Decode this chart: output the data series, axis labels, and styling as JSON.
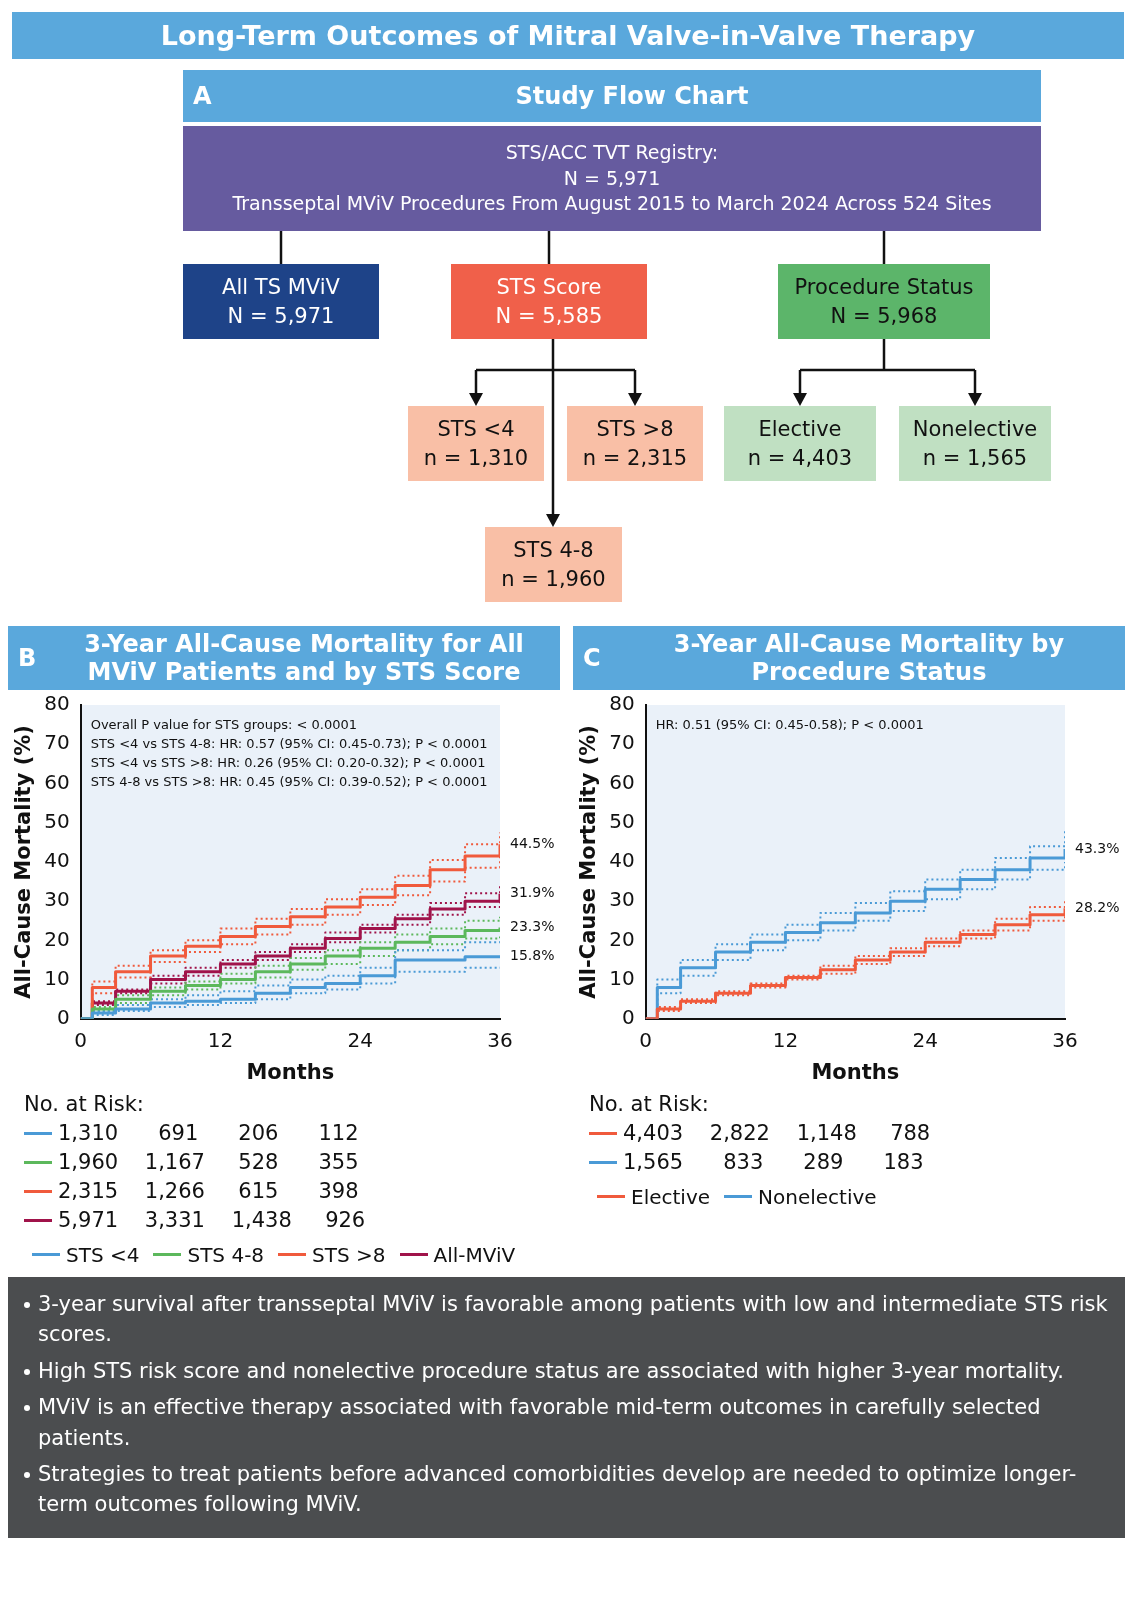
{
  "chart_data": [
    {
      "type": "other",
      "title": "Long-Term Outcomes of Mitral Valve-in-Valve Therapy",
      "subtitle": "Study Flow Chart",
      "annotations": [
        "A",
        "STS/ACC TVT Registry:\nN = 5,971\nTransseptal MViV Procedures From August 2015 to March 2024 Across 524 Sites",
        "All TS MViV\nN = 5,971",
        "STS Score\nN = 5,585",
        "Procedure Status\nN = 5,968",
        "STS <4\nn = 1,310",
        "STS >8\nn = 2,315",
        "STS 4-8\nn = 1,960",
        "Elective\nn = 4,403",
        "Nonelective\nn = 1,565"
      ]
    },
    {
      "type": "step",
      "title": "3-Year All-Cause Mortality for All MViV Patients and by STS Score",
      "xlabel": "Months",
      "ylabel": "All-Cause Mortality (%)",
      "xlim": [
        0,
        36
      ],
      "xticks": [
        0,
        12,
        24,
        36
      ],
      "ylim": [
        0,
        80
      ],
      "yticks": [
        0,
        10,
        20,
        30,
        40,
        50,
        60,
        70,
        80
      ],
      "legend": "bottom",
      "x": [
        0,
        1,
        3,
        6,
        9,
        12,
        15,
        18,
        21,
        24,
        27,
        30,
        33,
        36
      ],
      "annotations": [
        "B",
        "Overall P value for STS groups: < 0.0001\nSTS <4 vs STS 4-8: HR: 0.57 (95% CI: 0.45-0.73); P < 0.0001\nSTS <4 vs STS >8: HR: 0.26 (95% CI: 0.20-0.32); P < 0.0001\nSTS 4-8 vs STS >8: HR: 0.45 (95% CI: 0.39-0.52); P < 0.0001",
        "No. at Risk:",
        "1,310      691      206      112",
        "1,960    1,167     528      355",
        "2,315    1,266     615      398",
        "5,971    3,331    1,438     926"
      ],
      "series": [
        {
          "name": "STS <4",
          "color": "#4a9ad6",
          "values": [
            0,
            1.5,
            2.5,
            4,
            4.5,
            5,
            6.5,
            8,
            9,
            11,
            15,
            15,
            15.8,
            15.8
          ],
          "value_labels": [
            null,
            null,
            null,
            null,
            null,
            null,
            null,
            null,
            null,
            null,
            null,
            null,
            null,
            "15.8%"
          ]
        },
        {
          "name": "STS 4-8",
          "color": "#5cb85c",
          "values": [
            0,
            2.5,
            5,
            7,
            8.5,
            10,
            12,
            14,
            16,
            18,
            19.5,
            21,
            22.5,
            23.3
          ],
          "value_labels": [
            null,
            null,
            null,
            null,
            null,
            null,
            null,
            null,
            null,
            null,
            null,
            null,
            null,
            "23.3%"
          ]
        },
        {
          "name": "STS >8",
          "color": "#f05a3c",
          "values": [
            0,
            8,
            12,
            16,
            18.5,
            21,
            23.5,
            26,
            28.5,
            31,
            34,
            38,
            41.5,
            44.5
          ],
          "value_labels": [
            null,
            null,
            null,
            null,
            null,
            null,
            null,
            null,
            null,
            null,
            null,
            null,
            null,
            "44.5%"
          ]
        },
        {
          "name": "All-MViV",
          "color": "#a0134a",
          "values": [
            0,
            4,
            7,
            10,
            12,
            14,
            16,
            18,
            20.5,
            23,
            25.5,
            28,
            30,
            31.9
          ],
          "value_labels": [
            null,
            null,
            null,
            null,
            null,
            null,
            null,
            null,
            null,
            null,
            null,
            null,
            null,
            "31.9%"
          ]
        },
        {
          "color": "#4a9ad6",
          "line_style": "dotted",
          "values": [
            0,
            1,
            2,
            3,
            3.5,
            4,
            5,
            6.5,
            7.5,
            9,
            12,
            12,
            13,
            13
          ]
        },
        {
          "color": "#4a9ad6",
          "line_style": "dotted",
          "values": [
            0,
            2,
            3.5,
            5,
            6,
            7,
            8.5,
            10,
            11,
            13,
            17.5,
            17.5,
            19.5,
            20
          ]
        },
        {
          "color": "#5cb85c",
          "line_style": "dotted",
          "values": [
            0,
            2,
            4,
            6,
            7.5,
            9,
            10.5,
            12.5,
            14,
            16,
            17.5,
            19,
            20.5,
            21
          ]
        },
        {
          "color": "#5cb85c",
          "line_style": "dotted",
          "values": [
            0,
            3,
            6,
            8,
            9.5,
            11.5,
            13.5,
            15.5,
            17.5,
            19.5,
            21.5,
            23,
            25,
            26
          ]
        },
        {
          "color": "#f05a3c",
          "line_style": "dotted",
          "values": [
            0,
            6.5,
            10.5,
            14.5,
            17,
            19,
            21.5,
            24,
            26.5,
            29,
            31.5,
            35,
            38.5,
            41.5
          ]
        },
        {
          "color": "#f05a3c",
          "line_style": "dotted",
          "values": [
            0,
            9.5,
            13.5,
            17.5,
            20,
            23,
            25.5,
            28,
            30.5,
            33,
            36.5,
            40.5,
            44.5,
            47.5
          ]
        },
        {
          "color": "#a0134a",
          "line_style": "dotted",
          "values": [
            0,
            3.5,
            6.5,
            9,
            11,
            13,
            15,
            17,
            19.5,
            22,
            24,
            26.5,
            28.5,
            30
          ]
        },
        {
          "color": "#a0134a",
          "line_style": "dotted",
          "values": [
            0,
            4.5,
            7.5,
            11,
            13,
            15,
            17,
            19,
            22,
            24,
            26.5,
            29.5,
            32,
            34
          ]
        }
      ]
    },
    {
      "type": "step",
      "title": "3-Year All-Cause Mortality by Procedure Status",
      "xlabel": "Months",
      "ylabel": "All-Cause Mortality (%)",
      "xlim": [
        0,
        36
      ],
      "xticks": [
        0,
        12,
        24,
        36
      ],
      "ylim": [
        0,
        80
      ],
      "yticks": [
        0,
        10,
        20,
        30,
        40,
        50,
        60,
        70,
        80
      ],
      "legend": "bottom",
      "x": [
        0,
        1,
        3,
        6,
        9,
        12,
        15,
        18,
        21,
        24,
        27,
        30,
        33,
        36
      ],
      "annotations": [
        "C",
        "HR: 0.51 (95% CI: 0.45-0.58); P < 0.0001",
        "No. at Risk:",
        "4,403    2,822    1,148     788",
        "1,565      833      289      183"
      ],
      "series": [
        {
          "name": "Elective",
          "color": "#f05a3c",
          "values": [
            0,
            2.5,
            4.5,
            6.5,
            8.5,
            10.5,
            12.5,
            15,
            17,
            19.5,
            21.5,
            24,
            26.5,
            28.2
          ],
          "value_labels": [
            null,
            null,
            null,
            null,
            null,
            null,
            null,
            null,
            null,
            null,
            null,
            null,
            null,
            "28.2%"
          ]
        },
        {
          "name": "Nonelective",
          "color": "#4a9ad6",
          "values": [
            0,
            8,
            13,
            17,
            19.5,
            22,
            24.5,
            27,
            30,
            33,
            35.5,
            38,
            41,
            43.3
          ],
          "value_labels": [
            null,
            null,
            null,
            null,
            null,
            null,
            null,
            null,
            null,
            null,
            null,
            null,
            null,
            "43.3%"
          ]
        },
        {
          "color": "#f05a3c",
          "line_style": "dotted",
          "values": [
            0,
            2,
            4,
            6,
            8,
            10,
            11.5,
            14,
            16,
            18.5,
            20.5,
            22.5,
            25,
            27
          ]
        },
        {
          "color": "#f05a3c",
          "line_style": "dotted",
          "values": [
            0,
            3,
            5,
            7,
            9,
            11,
            13.5,
            16,
            18,
            20.5,
            22.5,
            25.5,
            28.5,
            30.5
          ]
        },
        {
          "color": "#4a9ad6",
          "line_style": "dotted",
          "values": [
            0,
            6.5,
            11,
            15,
            17.5,
            20,
            22.5,
            25,
            27.5,
            30.5,
            33,
            35.5,
            38,
            40
          ]
        },
        {
          "color": "#4a9ad6",
          "line_style": "dotted",
          "values": [
            0,
            10,
            15,
            19,
            21.5,
            24,
            27,
            29.5,
            32.5,
            35.5,
            38,
            41,
            44,
            48
          ]
        }
      ]
    },
    {
      "type": "other",
      "annotations": [
        "3-year survival after transseptal MViV is favorable among patients with low and intermediate STS risk scores.",
        "High STS risk score and nonelective procedure status are associated with higher 3-year mortality.",
        "MViV is an effective therapy associated with favorable mid-term outcomes in carefully selected patients.",
        "Strategies to treat patients before advanced comorbidities develop are needed to optimize longer-term outcomes following MViV."
      ]
    }
  ]
}
